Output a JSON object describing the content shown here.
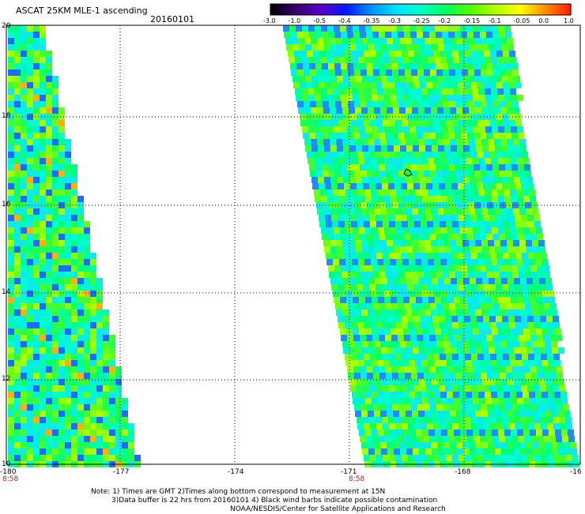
{
  "header": {
    "title": "ASCAT 25KM MLE-1 ascending",
    "date": "20160101"
  },
  "colorbar": {
    "ticks": [
      "-3.0",
      "-1.0",
      "-0.5",
      "-0.4",
      "-0.35",
      "-0.3",
      "-0.25",
      "-0.2",
      "-0.15",
      "-0.1",
      "-0.05",
      "0.0",
      "1.0"
    ],
    "colors": [
      "#000000",
      "#3a0070",
      "#5a00c8",
      "#0018ff",
      "#0090ff",
      "#00e0ff",
      "#00ffc8",
      "#00ff60",
      "#50ff00",
      "#b0ff00",
      "#ffff00",
      "#ff9000",
      "#ff2000"
    ]
  },
  "map": {
    "x_ticks": [
      "-180",
      "-177",
      "-174",
      "-171",
      "-168",
      "-16"
    ],
    "y_ticks": [
      "20",
      "18",
      "16",
      "14",
      "12",
      "10"
    ],
    "lon_range": [
      -180,
      -165
    ],
    "lat_range": [
      10,
      20
    ],
    "swath_times": [
      "8:58",
      "8:58"
    ],
    "grid": "dotted",
    "land_feature_lon": -169.5,
    "land_feature_lat": 16.8
  },
  "footer": {
    "line1": "Note: 1) Times are GMT 2)Times along bottom correspond to measurement at 15N",
    "line2": "3)Data buffer is 22 hrs from 20160101 4) Black wind barbs indicate possible contamination",
    "line3": "NOAA/NESDIS/Center for Satellite Applications and Research"
  }
}
